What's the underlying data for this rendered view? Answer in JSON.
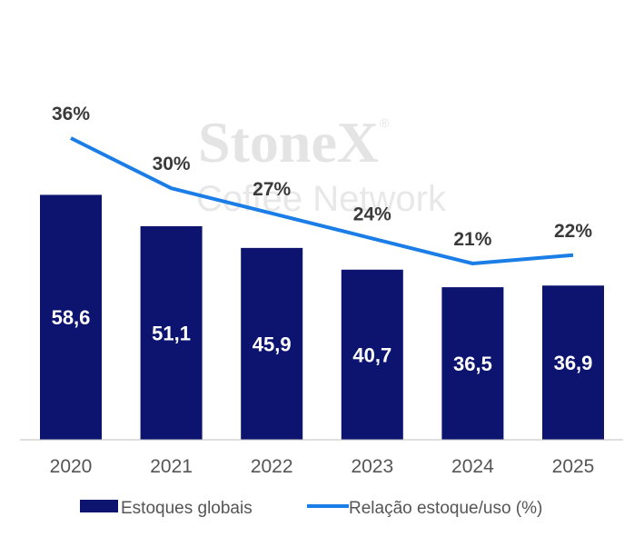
{
  "watermark": {
    "brand": "StoneX",
    "mark": "®",
    "network": "Coffee Network"
  },
  "chart_data": {
    "type": "bar",
    "categories": [
      "2020",
      "2021",
      "2022",
      "2023",
      "2024",
      "2025"
    ],
    "series": [
      {
        "name": "Estoques globais",
        "type": "bar",
        "color": "#0d1470",
        "values": [
          58.6,
          51.1,
          45.9,
          40.7,
          36.5,
          36.9
        ],
        "labels": [
          "58,6",
          "51,1",
          "45,9",
          "40,7",
          "36,5",
          "36,9"
        ]
      },
      {
        "name": "Relação estoque/uso (%)",
        "type": "line",
        "color": "#1a7ee6",
        "values": [
          36,
          30,
          27,
          24,
          21,
          22
        ],
        "labels": [
          "36%",
          "30%",
          "27%",
          "24%",
          "21%",
          "22%"
        ]
      }
    ],
    "legend_position": "bottom",
    "grid": false
  }
}
